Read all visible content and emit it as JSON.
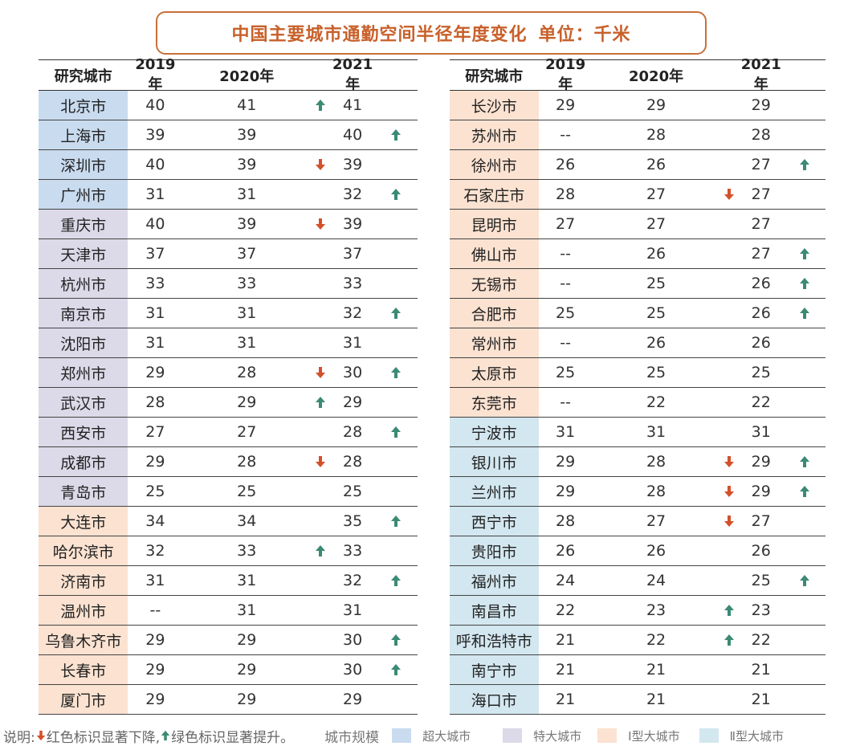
{
  "title": "中国主要城市通勤空间半径年度变化",
  "unit": "单位：千米",
  "colors": {
    "title": "#c8602a",
    "up_arrow": "#3a8a74",
    "down_arrow": "#d4502a",
    "super": "#c9dbef",
    "mega": "#dcd9e9",
    "type_one": "#fbe2d1",
    "type_two": "#d3e7f0"
  },
  "headers": {
    "city": "研究城市",
    "y2019": "2019年",
    "y2020": "2020年",
    "y2021": "2021年"
  },
  "left_rows": [
    {
      "city": "北京市",
      "tier": "super",
      "y2019": "40",
      "y2020": "41",
      "a2020": "up",
      "y2021": "41",
      "a2021": ""
    },
    {
      "city": "上海市",
      "tier": "super",
      "y2019": "39",
      "y2020": "39",
      "a2020": "",
      "y2021": "40",
      "a2021": "up"
    },
    {
      "city": "深圳市",
      "tier": "super",
      "y2019": "40",
      "y2020": "39",
      "a2020": "down",
      "y2021": "39",
      "a2021": ""
    },
    {
      "city": "广州市",
      "tier": "super",
      "y2019": "31",
      "y2020": "31",
      "a2020": "",
      "y2021": "32",
      "a2021": "up"
    },
    {
      "city": "重庆市",
      "tier": "mega",
      "y2019": "40",
      "y2020": "39",
      "a2020": "down",
      "y2021": "39",
      "a2021": ""
    },
    {
      "city": "天津市",
      "tier": "mega",
      "y2019": "37",
      "y2020": "37",
      "a2020": "",
      "y2021": "37",
      "a2021": ""
    },
    {
      "city": "杭州市",
      "tier": "mega",
      "y2019": "33",
      "y2020": "33",
      "a2020": "",
      "y2021": "33",
      "a2021": ""
    },
    {
      "city": "南京市",
      "tier": "mega",
      "y2019": "31",
      "y2020": "31",
      "a2020": "",
      "y2021": "32",
      "a2021": "up"
    },
    {
      "city": "沈阳市",
      "tier": "mega",
      "y2019": "31",
      "y2020": "31",
      "a2020": "",
      "y2021": "31",
      "a2021": ""
    },
    {
      "city": "郑州市",
      "tier": "mega",
      "y2019": "29",
      "y2020": "28",
      "a2020": "down",
      "y2021": "30",
      "a2021": "up"
    },
    {
      "city": "武汉市",
      "tier": "mega",
      "y2019": "28",
      "y2020": "29",
      "a2020": "up",
      "y2021": "29",
      "a2021": ""
    },
    {
      "city": "西安市",
      "tier": "mega",
      "y2019": "27",
      "y2020": "27",
      "a2020": "",
      "y2021": "28",
      "a2021": "up"
    },
    {
      "city": "成都市",
      "tier": "mega",
      "y2019": "29",
      "y2020": "28",
      "a2020": "down",
      "y2021": "28",
      "a2021": ""
    },
    {
      "city": "青岛市",
      "tier": "mega",
      "y2019": "25",
      "y2020": "25",
      "a2020": "",
      "y2021": "25",
      "a2021": ""
    },
    {
      "city": "大连市",
      "tier": "one",
      "y2019": "34",
      "y2020": "34",
      "a2020": "",
      "y2021": "35",
      "a2021": "up"
    },
    {
      "city": "哈尔滨市",
      "tier": "one",
      "y2019": "32",
      "y2020": "33",
      "a2020": "up",
      "y2021": "33",
      "a2021": ""
    },
    {
      "city": "济南市",
      "tier": "one",
      "y2019": "31",
      "y2020": "31",
      "a2020": "",
      "y2021": "32",
      "a2021": "up"
    },
    {
      "city": "温州市",
      "tier": "one",
      "y2019": "--",
      "y2020": "31",
      "a2020": "",
      "y2021": "31",
      "a2021": ""
    },
    {
      "city": "乌鲁木齐市",
      "tier": "one",
      "y2019": "29",
      "y2020": "29",
      "a2020": "",
      "y2021": "30",
      "a2021": "up"
    },
    {
      "city": "长春市",
      "tier": "one",
      "y2019": "29",
      "y2020": "29",
      "a2020": "",
      "y2021": "30",
      "a2021": "up"
    },
    {
      "city": "厦门市",
      "tier": "one",
      "y2019": "29",
      "y2020": "29",
      "a2020": "",
      "y2021": "29",
      "a2021": ""
    }
  ],
  "right_rows": [
    {
      "city": "长沙市",
      "tier": "one",
      "y2019": "29",
      "y2020": "29",
      "a2020": "",
      "y2021": "29",
      "a2021": ""
    },
    {
      "city": "苏州市",
      "tier": "one",
      "y2019": "--",
      "y2020": "28",
      "a2020": "",
      "y2021": "28",
      "a2021": ""
    },
    {
      "city": "徐州市",
      "tier": "one",
      "y2019": "26",
      "y2020": "26",
      "a2020": "",
      "y2021": "27",
      "a2021": "up"
    },
    {
      "city": "石家庄市",
      "tier": "one",
      "y2019": "28",
      "y2020": "27",
      "a2020": "down",
      "y2021": "27",
      "a2021": ""
    },
    {
      "city": "昆明市",
      "tier": "one",
      "y2019": "27",
      "y2020": "27",
      "a2020": "",
      "y2021": "27",
      "a2021": ""
    },
    {
      "city": "佛山市",
      "tier": "one",
      "y2019": "--",
      "y2020": "26",
      "a2020": "",
      "y2021": "27",
      "a2021": "up"
    },
    {
      "city": "无锡市",
      "tier": "one",
      "y2019": "--",
      "y2020": "25",
      "a2020": "",
      "y2021": "26",
      "a2021": "up"
    },
    {
      "city": "合肥市",
      "tier": "one",
      "y2019": "25",
      "y2020": "25",
      "a2020": "",
      "y2021": "26",
      "a2021": "up"
    },
    {
      "city": "常州市",
      "tier": "one",
      "y2019": "--",
      "y2020": "26",
      "a2020": "",
      "y2021": "26",
      "a2021": ""
    },
    {
      "city": "太原市",
      "tier": "one",
      "y2019": "25",
      "y2020": "25",
      "a2020": "",
      "y2021": "25",
      "a2021": ""
    },
    {
      "city": "东莞市",
      "tier": "one",
      "y2019": "--",
      "y2020": "22",
      "a2020": "",
      "y2021": "22",
      "a2021": ""
    },
    {
      "city": "宁波市",
      "tier": "two",
      "y2019": "31",
      "y2020": "31",
      "a2020": "",
      "y2021": "31",
      "a2021": ""
    },
    {
      "city": "银川市",
      "tier": "two",
      "y2019": "29",
      "y2020": "28",
      "a2020": "down",
      "y2021": "29",
      "a2021": "up"
    },
    {
      "city": "兰州市",
      "tier": "two",
      "y2019": "29",
      "y2020": "28",
      "a2020": "down",
      "y2021": "29",
      "a2021": "up"
    },
    {
      "city": "西宁市",
      "tier": "two",
      "y2019": "28",
      "y2020": "27",
      "a2020": "down",
      "y2021": "27",
      "a2021": ""
    },
    {
      "city": "贵阳市",
      "tier": "two",
      "y2019": "26",
      "y2020": "26",
      "a2020": "",
      "y2021": "26",
      "a2021": ""
    },
    {
      "city": "福州市",
      "tier": "two",
      "y2019": "24",
      "y2020": "24",
      "a2020": "",
      "y2021": "25",
      "a2021": "up"
    },
    {
      "city": "南昌市",
      "tier": "two",
      "y2019": "22",
      "y2020": "23",
      "a2020": "up",
      "y2021": "23",
      "a2021": ""
    },
    {
      "city": "呼和浩特市",
      "tier": "two",
      "y2019": "21",
      "y2020": "22",
      "a2020": "up",
      "y2021": "22",
      "a2021": ""
    },
    {
      "city": "南宁市",
      "tier": "two",
      "y2019": "21",
      "y2020": "21",
      "a2020": "",
      "y2021": "21",
      "a2021": ""
    },
    {
      "city": "海口市",
      "tier": "two",
      "y2019": "21",
      "y2020": "21",
      "a2020": "",
      "y2021": "21",
      "a2021": ""
    }
  ],
  "footer": {
    "note_prefix": "说明:",
    "note_down": "红色标识显著下降,",
    "note_up": "绿色标识显著提升。",
    "legend_title": "城市规模",
    "legend": [
      {
        "key": "super",
        "label": "超大城市"
      },
      {
        "key": "mega",
        "label": "特大城市"
      },
      {
        "key": "one",
        "label": "Ⅰ型大城市"
      },
      {
        "key": "two",
        "label": "Ⅱ型大城市"
      }
    ]
  }
}
